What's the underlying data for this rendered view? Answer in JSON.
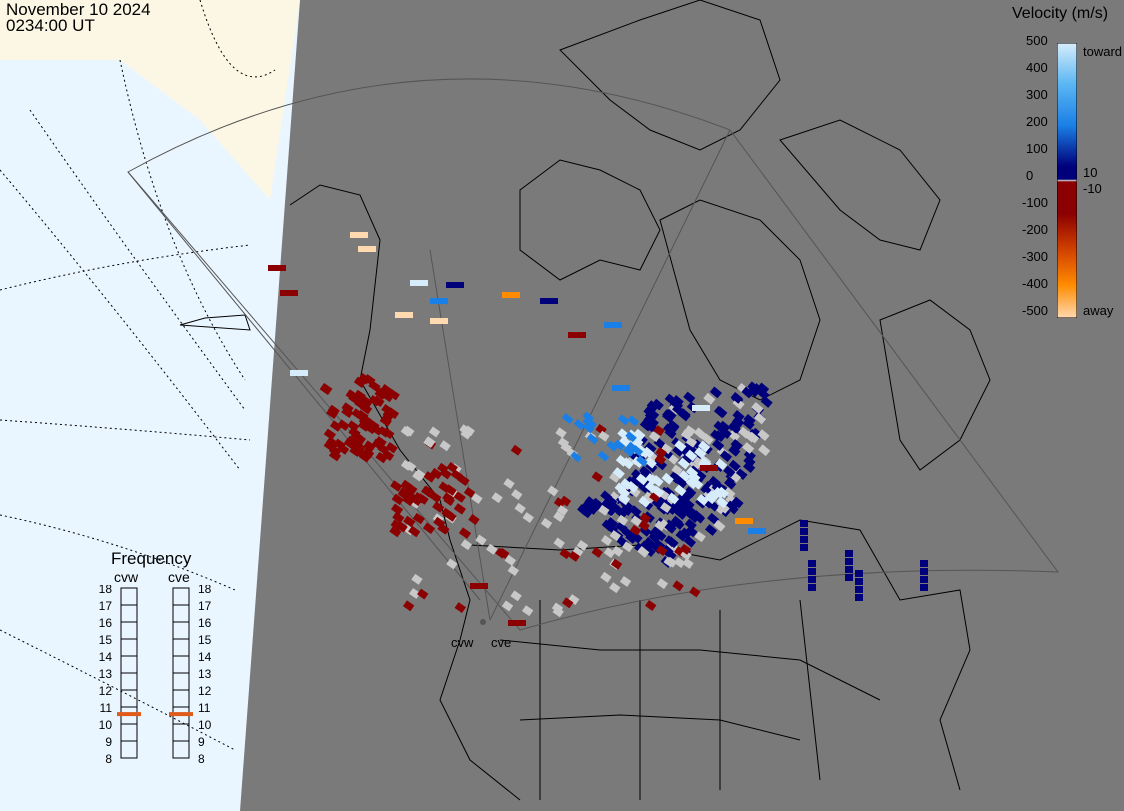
{
  "header": {
    "date": "November 10 2024",
    "time": "0234:00 UT"
  },
  "legend": {
    "title": "Velocity (m/s)",
    "ticks": [
      "500",
      "400",
      "300",
      "200",
      "100",
      "0",
      "-100",
      "-200",
      "-300",
      "-400",
      "-500"
    ],
    "label_toward": "toward",
    "label_10": "10",
    "label_neg10": "-10",
    "label_away": "away",
    "colors": {
      "toward_high": "#d6ecfb",
      "toward_mid": "#1a7fe6",
      "toward_low": "#00007a",
      "away_low": "#8b0000",
      "away_mid": "#d04000",
      "away_high": "#ff8c00",
      "away_max": "#ffd9b0"
    }
  },
  "frequency": {
    "title": "Frequency",
    "radars": [
      "cvw",
      "cve"
    ],
    "scale": [
      "18",
      "17",
      "16",
      "15",
      "14",
      "13",
      "12",
      "11",
      "10",
      "9",
      "8"
    ],
    "cvw_mhz": 11,
    "cve_mhz": 11,
    "marker_color": "#e05a1a"
  },
  "map": {
    "background_gray": "#7a7a7a",
    "ocean_color": "#eaf6ff",
    "land_color": "#fbf7e4",
    "ground_scatter_color": "#c8c8c8",
    "radar_labels": [
      "cvw",
      "cve"
    ]
  }
}
